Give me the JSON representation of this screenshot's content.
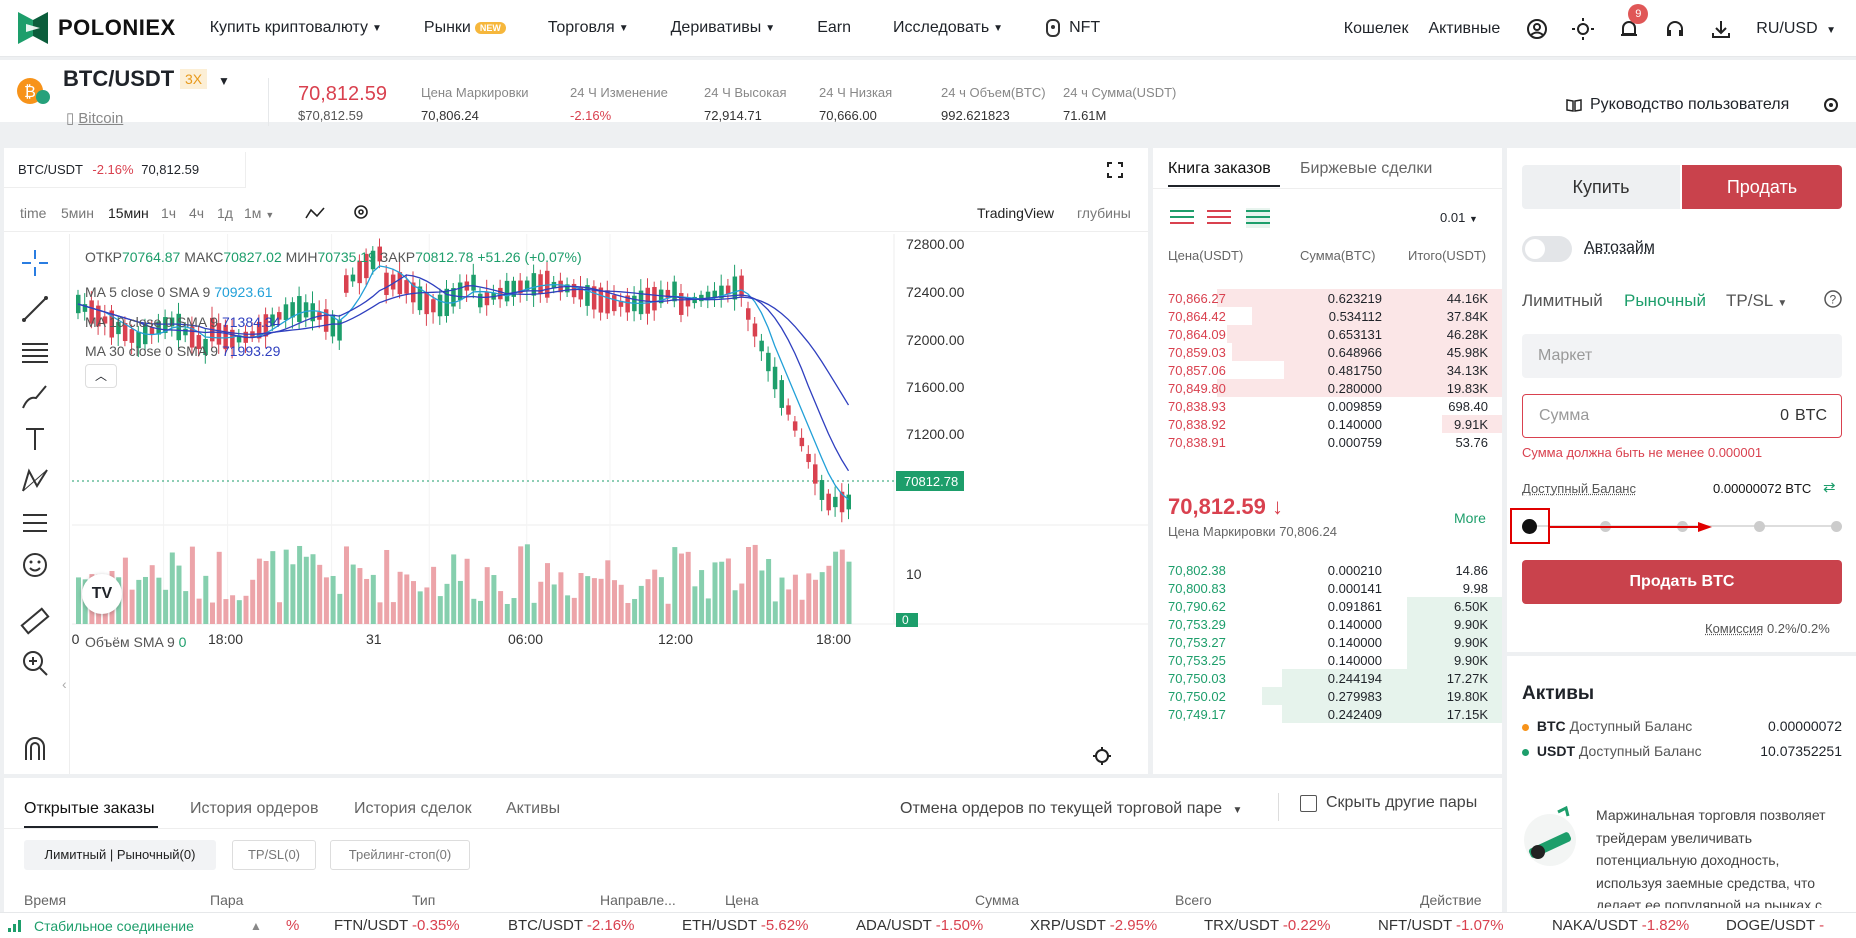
{
  "nav": {
    "brand": "POLONIEX",
    "items": [
      "Купить криптовалюту",
      "Рынки",
      "Торговля",
      "Деривативы",
      "Earn",
      "Исследовать",
      "NFT"
    ],
    "new_badge": "NEW",
    "right": [
      "Кошелек",
      "Активные"
    ],
    "notif_count": "9",
    "locale": "RU/USD"
  },
  "ticker": {
    "pair": "BTC/USDT",
    "leverage": "3X",
    "coin": "Bitcoin",
    "price": "70,812.59",
    "price_usd": "$70,812.59",
    "stats": [
      {
        "label": "Цена Маркировки",
        "value": "70,806.24"
      },
      {
        "label": "24 Ч Изменение",
        "value": "-2.16%"
      },
      {
        "label": "24 Ч Высокая",
        "value": "72,914.71"
      },
      {
        "label": "24 Ч Низкая",
        "value": "70,666.00"
      },
      {
        "label": "24 ч Объем(BTC)",
        "value": "992.621823"
      },
      {
        "label": "24 ч Сумма(USDT)",
        "value": "71.61M"
      }
    ],
    "guide": "Руководство пользователя"
  },
  "chart": {
    "tab_pair": "BTC/USDT",
    "tab_change": "-2.16%",
    "tab_price": "70,812.59",
    "timeframes": [
      "time",
      "5мин",
      "15мин",
      "1ч",
      "4ч",
      "1д",
      "1м"
    ],
    "active_tf": "15мин",
    "view_trading": "TradingView",
    "view_depth": "глубины",
    "ohlc": {
      "o_label": "ОТКР",
      "o": "70764.87",
      "h_label": "МАКС",
      "h": "70827.02",
      "l_label": "МИН",
      "l": "70735.19",
      "c_label": "ЗАКР",
      "c": "70812.78",
      "chg": "+51.26 (+0.07%)"
    },
    "ma": [
      {
        "label": "MA 5 close 0 SMA 9",
        "value": "70923.61",
        "color": "#22a0d8"
      },
      {
        "label": "MA 10 close 0 SMA 9",
        "value": "71384.34",
        "color": "#2f3fbf"
      },
      {
        "label": "MA 30 close 0 SMA 9",
        "value": "71993.29",
        "color": "#2f3fbf"
      }
    ],
    "price_axis": [
      "72800.00",
      "72400.00",
      "72000.00",
      "71600.00",
      "71200.00"
    ],
    "current_price_tag": "70812.78",
    "volume_label": "Объём SMA 9",
    "volume_value": "0",
    "vol_axis": [
      "10",
      "0"
    ],
    "time_axis": [
      ":00",
      "18:00",
      "31",
      "06:00",
      "12:00",
      "18:00"
    ]
  },
  "orderbook": {
    "tabs": [
      "Книга заказов",
      "Биржевые сделки"
    ],
    "tick": "0.01",
    "headers": [
      "Цена(USDT)",
      "Сумма(BTC)",
      "Итого(USDT)"
    ],
    "asks": [
      [
        "70,866.27",
        "0.623219",
        "44.16K"
      ],
      [
        "70,864.42",
        "0.534112",
        "37.84K"
      ],
      [
        "70,864.09",
        "0.653131",
        "46.28K"
      ],
      [
        "70,859.03",
        "0.648966",
        "45.98K"
      ],
      [
        "70,857.06",
        "0.481750",
        "34.13K"
      ],
      [
        "70,849.80",
        "0.280000",
        "19.83K"
      ],
      [
        "70,838.93",
        "0.009859",
        "698.40"
      ],
      [
        "70,838.92",
        "0.140000",
        "9.91K"
      ],
      [
        "70,838.91",
        "0.000759",
        "53.76"
      ]
    ],
    "mid_price": "70,812.59",
    "mark_label": "Цена Маркировки",
    "mark": "70,806.24",
    "more": "More",
    "bids": [
      [
        "70,802.38",
        "0.000210",
        "14.86"
      ],
      [
        "70,800.83",
        "0.000141",
        "9.98"
      ],
      [
        "70,790.62",
        "0.091861",
        "6.50K"
      ],
      [
        "70,753.29",
        "0.140000",
        "9.90K"
      ],
      [
        "70,753.27",
        "0.140000",
        "9.90K"
      ],
      [
        "70,753.25",
        "0.140000",
        "9.90K"
      ],
      [
        "70,750.03",
        "0.244194",
        "17.27K"
      ],
      [
        "70,750.02",
        "0.279983",
        "19.80K"
      ],
      [
        "70,749.17",
        "0.242409",
        "17.15K"
      ]
    ]
  },
  "trade": {
    "buy": "Купить",
    "sell": "Продать",
    "autoloan": "Автозайм",
    "types": [
      "Лимитный",
      "Рыночный",
      "TP/SL"
    ],
    "market_placeholder": "Маркет",
    "amount_placeholder": "Сумма",
    "amount_value": "0",
    "amount_unit": "BTC",
    "error": "Сумма должна быть не менее 0.000001",
    "balance_label": "Доступный Баланс",
    "balance": "0.00000072 BTC",
    "submit": "Продать BTC",
    "fee_label": "Комиссия",
    "fee": "0.2%/0.2%"
  },
  "assets": {
    "title": "Активы",
    "rows": [
      {
        "coin": "BTC",
        "label": "Доступный Баланс",
        "value": "0.00000072",
        "color": "#f7931a"
      },
      {
        "coin": "USDT",
        "label": "Доступный Баланс",
        "value": "10.07352251",
        "color": "#1d9e6b"
      }
    ],
    "promo": "Маржинальная торговля позволяет трейдерам увеличивать потенциальную доходность, используя заемные средства, что делает ее популярной на рынках с"
  },
  "orders": {
    "tabs": [
      "Открытые заказы",
      "История ордеров",
      "История сделок",
      "Активы"
    ],
    "cancel": "Отмена ордеров по текущей торговой паре",
    "hide": "Скрыть другие пары",
    "chips": [
      "Лимитный | Рыночный(0)",
      "TP/SL(0)",
      "Трейлинг-стоп(0)"
    ],
    "columns": [
      "Время",
      "Пара",
      "Тип",
      "Направле...",
      "Цена",
      "Сумма",
      "Всего",
      "Действие"
    ]
  },
  "footer": {
    "status": "Стабильное соединение",
    "tickers": [
      {
        "sym": "FTN/USDT",
        "chg": "-0.35%"
      },
      {
        "sym": "BTC/USDT",
        "chg": "-2.16%"
      },
      {
        "sym": "ETH/USDT",
        "chg": "-5.62%"
      },
      {
        "sym": "ADA/USDT",
        "chg": "-1.50%"
      },
      {
        "sym": "XRP/USDT",
        "chg": "-2.95%"
      },
      {
        "sym": "TRX/USDT",
        "chg": "-0.22%"
      },
      {
        "sym": "NFT/USDT",
        "chg": "-1.07%"
      },
      {
        "sym": "NAKA/USDT",
        "chg": "-1.82%"
      },
      {
        "sym": "DOGE/USDT",
        "chg": "-"
      }
    ],
    "first_chg": "%"
  }
}
